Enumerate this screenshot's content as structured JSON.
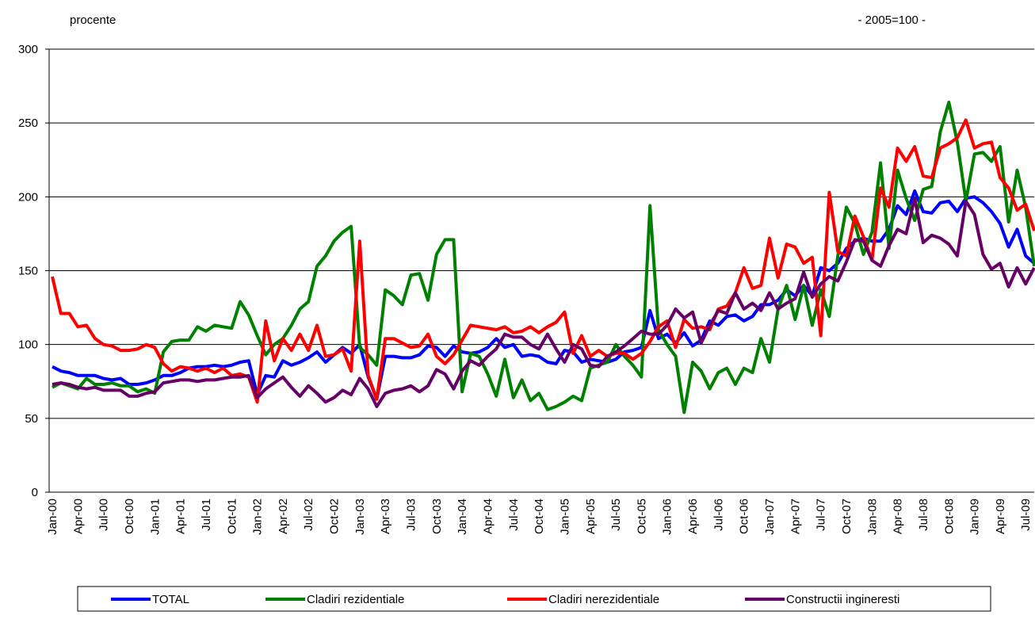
{
  "chart_data": {
    "type": "line",
    "subtitle": "procente",
    "note": "- 2005=100 -",
    "categories": [
      "Jan-00",
      null,
      null,
      "Apr-00",
      null,
      null,
      "Jul-00",
      null,
      null,
      "Oct-00",
      null,
      null,
      "Jan-01",
      null,
      null,
      "Apr-01",
      null,
      null,
      "Jul-01",
      null,
      null,
      "Oct-01",
      null,
      null,
      "Jan-02",
      null,
      null,
      "Apr-02",
      null,
      null,
      "Jul-02",
      null,
      null,
      "Oct-02",
      null,
      null,
      "Jan-03",
      null,
      null,
      "Apr-03",
      null,
      null,
      "Jul-03",
      null,
      null,
      "Oct-03",
      null,
      null,
      "Jan-04",
      null,
      null,
      "Apr-04",
      null,
      null,
      "Jul-04",
      null,
      null,
      "Oct-04",
      null,
      null,
      "Jan-05",
      null,
      null,
      "Apr-05",
      null,
      null,
      "Jul-05",
      null,
      null,
      "Oct-05",
      null,
      null,
      "Jan-06",
      null,
      null,
      "Apr-06",
      null,
      null,
      "Jul-06",
      null,
      null,
      "Oct-06",
      null,
      null,
      "Jan-07",
      null,
      null,
      "Apr-07",
      null,
      null,
      "Jul-07",
      null,
      null,
      "Oct-07",
      null,
      null,
      "Jan-08",
      null,
      null,
      "Apr-08",
      null,
      null,
      "Jul-08",
      null,
      null,
      "Oct-08",
      null,
      null,
      "Jan-09",
      null,
      null,
      "Apr-09",
      null,
      null,
      "Jul-09",
      null
    ],
    "series": [
      {
        "name": "TOTAL",
        "color": "#0000ff",
        "values": [
          85,
          82,
          81,
          79,
          79,
          79,
          77,
          76,
          77,
          73,
          73,
          74,
          76,
          79,
          79,
          81,
          84,
          85,
          85,
          86,
          85,
          86,
          88,
          89,
          66,
          79,
          78,
          89,
          86,
          88,
          91,
          95,
          88,
          93,
          98,
          94,
          100,
          78,
          63,
          92,
          92,
          91,
          91,
          93,
          99,
          98,
          92,
          99,
          95,
          94,
          95,
          98,
          104,
          98,
          100,
          92,
          93,
          92,
          88,
          87,
          96,
          95,
          88,
          90,
          89,
          88,
          90,
          95,
          96,
          98,
          123,
          104,
          107,
          101,
          108,
          99,
          103,
          116,
          113,
          119,
          120,
          116,
          119,
          127,
          127,
          130,
          137,
          133,
          140,
          133,
          152,
          150,
          155,
          165,
          170,
          172,
          170,
          170,
          178,
          194,
          188,
          204,
          190,
          189,
          196,
          197,
          190,
          199,
          200,
          196,
          190,
          182,
          166,
          178,
          160,
          155
        ]
      },
      {
        "name": "Cladiri rezidentiale",
        "color": "#008000",
        "values": [
          71,
          74,
          72,
          70,
          77,
          73,
          73,
          74,
          72,
          72,
          68,
          70,
          67,
          95,
          102,
          103,
          103,
          112,
          109,
          113,
          112,
          111,
          129,
          120,
          106,
          93,
          100,
          104,
          113,
          124,
          129,
          153,
          160,
          170,
          176,
          180,
          98,
          93,
          86,
          137,
          133,
          127,
          147,
          148,
          130,
          161,
          171,
          171,
          68,
          94,
          92,
          80,
          65,
          90,
          64,
          76,
          62,
          67,
          56,
          58,
          61,
          65,
          62,
          84,
          86,
          88,
          100,
          92,
          86,
          78,
          194,
          110,
          100,
          92,
          54,
          88,
          82,
          70,
          81,
          84,
          73,
          84,
          81,
          104,
          88,
          124,
          140,
          117,
          140,
          113,
          137,
          119,
          160,
          193,
          182,
          161,
          176,
          223,
          165,
          218,
          199,
          184,
          205,
          207,
          244,
          264,
          237,
          197,
          229,
          230,
          224,
          234,
          183,
          218,
          193,
          153
        ]
      },
      {
        "name": "Cladiri nerezidentiale",
        "color": "#ff0000",
        "values": [
          146,
          121,
          121,
          112,
          113,
          104,
          100,
          99,
          96,
          96,
          97,
          100,
          98,
          87,
          82,
          85,
          84,
          82,
          84,
          81,
          84,
          79,
          80,
          78,
          61,
          116,
          89,
          104,
          96,
          107,
          96,
          113,
          92,
          93,
          97,
          82,
          170,
          79,
          63,
          104,
          104,
          101,
          98,
          99,
          107,
          92,
          87,
          93,
          103,
          113,
          112,
          111,
          110,
          112,
          108,
          109,
          112,
          108,
          112,
          115,
          122,
          94,
          106,
          92,
          96,
          92,
          94,
          94,
          90,
          94,
          102,
          112,
          116,
          98,
          117,
          111,
          112,
          110,
          124,
          126,
          135,
          152,
          138,
          140,
          172,
          145,
          168,
          166,
          155,
          159,
          106,
          203,
          163,
          160,
          187,
          173,
          157,
          206,
          193,
          233,
          224,
          234,
          214,
          213,
          233,
          236,
          240,
          252,
          233,
          236,
          237,
          213,
          206,
          191,
          195,
          177
        ]
      },
      {
        "name": "Constructii ingineresti",
        "color": "#660066",
        "values": [
          73,
          74,
          73,
          71,
          70,
          71,
          69,
          69,
          69,
          65,
          65,
          67,
          68,
          74,
          75,
          76,
          76,
          75,
          76,
          76,
          77,
          78,
          78,
          79,
          64,
          70,
          74,
          78,
          71,
          65,
          72,
          67,
          61,
          64,
          69,
          66,
          77,
          70,
          58,
          67,
          69,
          70,
          72,
          68,
          72,
          83,
          80,
          70,
          82,
          89,
          86,
          92,
          97,
          107,
          105,
          105,
          100,
          97,
          107,
          97,
          88,
          100,
          97,
          86,
          85,
          92,
          95,
          99,
          104,
          109,
          107,
          107,
          113,
          124,
          118,
          122,
          101,
          113,
          123,
          121,
          135,
          124,
          128,
          123,
          135,
          124,
          128,
          131,
          149,
          132,
          141,
          146,
          143,
          156,
          171,
          170,
          157,
          153,
          167,
          178,
          175,
          199,
          169,
          174,
          172,
          168,
          160,
          197,
          188,
          161,
          151,
          155,
          139,
          152,
          141,
          152
        ]
      }
    ],
    "ylim": [
      0,
      300
    ],
    "yticks": [
      0,
      50,
      100,
      150,
      200,
      250,
      300
    ],
    "grid": true
  }
}
